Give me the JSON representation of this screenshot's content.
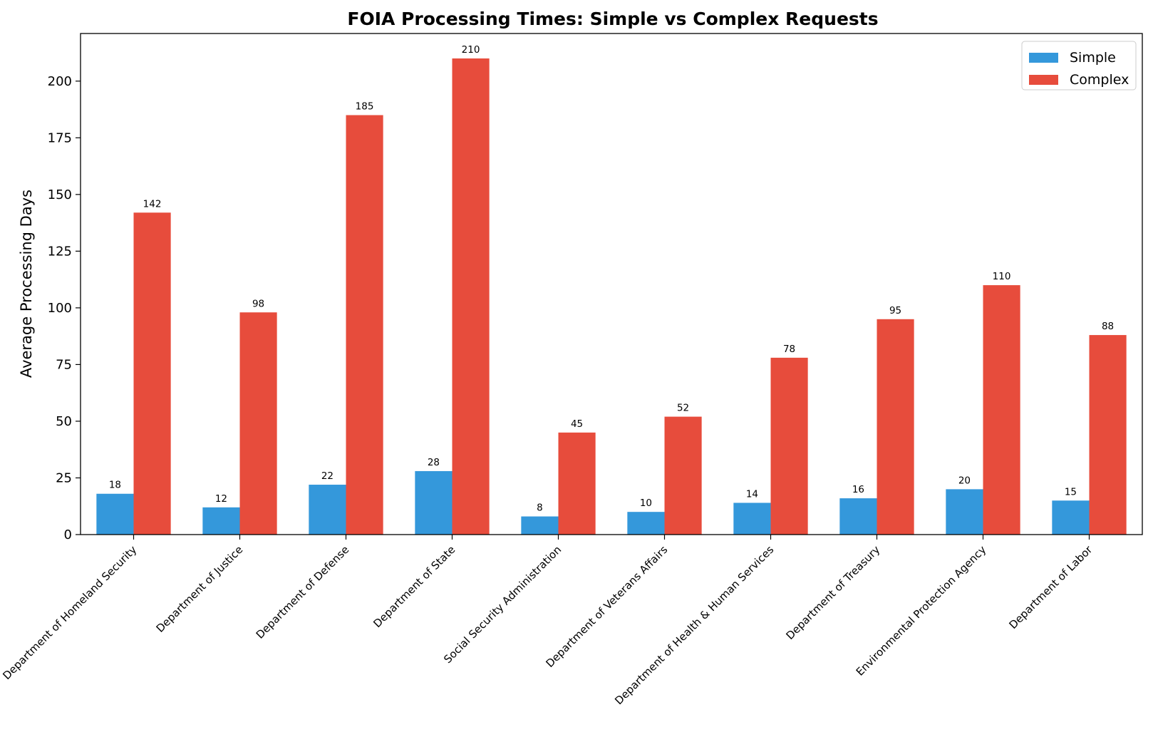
{
  "chart_data": {
    "type": "bar",
    "title": "FOIA Processing Times: Simple vs Complex Requests",
    "xlabel": "",
    "ylabel": "Average Processing Days",
    "ylim": [
      0,
      221
    ],
    "yticks": [
      0,
      25,
      50,
      75,
      100,
      125,
      150,
      175,
      200
    ],
    "grid": false,
    "legend_position": "top-right",
    "categories": [
      "Department of Homeland Security",
      "Department of Justice",
      "Department of Defense",
      "Department of State",
      "Social Security Administration",
      "Department of Veterans Affairs",
      "Department of Health & Human Services",
      "Department of Treasury",
      "Environmental Protection Agency",
      "Department of Labor"
    ],
    "series": [
      {
        "name": "Simple",
        "color": "#3498db",
        "values": [
          18,
          12,
          22,
          28,
          8,
          10,
          14,
          16,
          20,
          15
        ]
      },
      {
        "name": "Complex",
        "color": "#e74c3c",
        "values": [
          142,
          98,
          185,
          210,
          45,
          52,
          78,
          95,
          110,
          88
        ]
      }
    ]
  }
}
